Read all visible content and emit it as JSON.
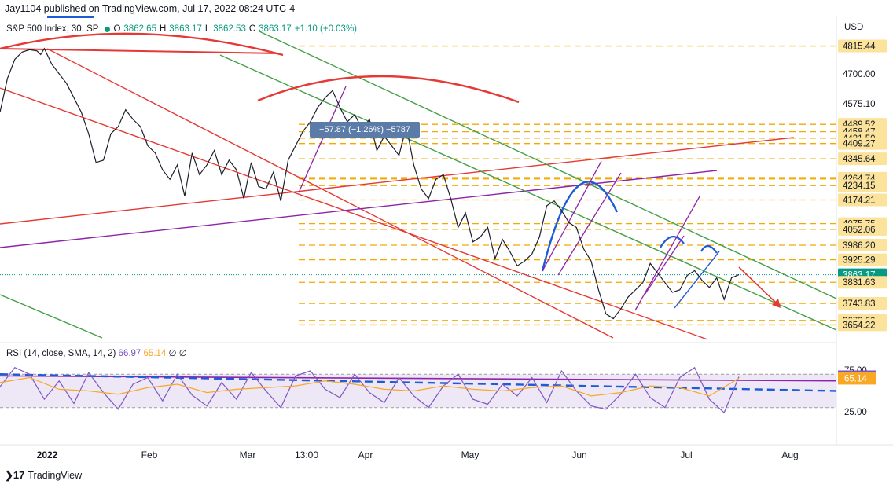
{
  "header": {
    "publisher_line": "Jay1104 published on TradingView.com, Jul 17, 2022 08:24 UTC-4"
  },
  "legend": {
    "symbol": "S&P 500 Index, 30, SP",
    "open_label": "O",
    "open": "3862.65",
    "high_label": "H",
    "high": "3863.17",
    "low_label": "L",
    "low": "3862.53",
    "close_label": "C",
    "close": "3863.17",
    "change": "+1.10 (+0.03%)"
  },
  "currency": "USD",
  "measure_label": "−57.87 (−1.26%) −5787",
  "rsi_legend": {
    "label": "RSI (14, close, SMA, 14, 2)",
    "rsi_value": "66.97",
    "sma_value": "65.14",
    "extra": "∅ ∅"
  },
  "footer": {
    "brand": "TradingView",
    "brand_icon": "tradingview-logo-icon"
  },
  "colors": {
    "price_line": "#1c1f2b",
    "support_dash": "#f2a900",
    "red_line": "#e53935",
    "green_line": "#43a047",
    "purple_line": "#8e24aa",
    "blue_line": "#1e5bd6",
    "rsi_line": "#7e57c2",
    "rsi_sma": "#f9a825",
    "rsi_band": "#ede7f6",
    "last_price_bg": "#089981"
  },
  "chart_data": [
    {
      "type": "line",
      "title": "S&P 500 Index, 30, SP",
      "x_labels": [
        "2022",
        "Feb",
        "Mar",
        "13:00",
        "Apr",
        "May",
        "Jun",
        "Jul",
        "Aug"
      ],
      "y_ticks": [
        4700.0
      ],
      "price_levels": [
        {
          "label": "4815.44",
          "value": 4815.44,
          "style": "dash"
        },
        {
          "label": "4575.10",
          "value": 4575.1,
          "style": "axis"
        },
        {
          "label": "4489.52",
          "value": 4489.52,
          "style": "dash"
        },
        {
          "label": "4458.47",
          "value": 4458.47,
          "style": "dash"
        },
        {
          "label": "4431.50",
          "value": 4431.5,
          "style": "dash"
        },
        {
          "label": "4409.27",
          "value": 4409.27,
          "style": "dash"
        },
        {
          "label": "4345.64",
          "value": 4345.64,
          "style": "dash"
        },
        {
          "label": "4264.74",
          "value": 4264.74,
          "style": "dash"
        },
        {
          "label": "4234.15",
          "value": 4234.15,
          "style": "dash"
        },
        {
          "label": "4174.21",
          "value": 4174.21,
          "style": "dash"
        },
        {
          "label": "4075.75",
          "value": 4075.75,
          "style": "dash"
        },
        {
          "label": "4052.06",
          "value": 4052.06,
          "style": "dash"
        },
        {
          "label": "3986.20",
          "value": 3986.2,
          "style": "dash"
        },
        {
          "label": "3925.29",
          "value": 3925.29,
          "style": "dash"
        },
        {
          "label": "3863.17",
          "value": 3863.17,
          "style": "last"
        },
        {
          "label": "3831.63",
          "value": 3831.63,
          "style": "dash"
        },
        {
          "label": "3743.83",
          "value": 3743.83,
          "style": "dash"
        },
        {
          "label": "3672.60",
          "value": 3672.6,
          "style": "dash"
        },
        {
          "label": "3654.22",
          "value": 3654.22,
          "style": "dash"
        }
      ],
      "series": [
        {
          "name": "S&P 500 Index",
          "x": [
            0,
            0.01,
            0.02,
            0.03,
            0.04,
            0.05,
            0.055,
            0.06,
            0.07,
            0.08,
            0.09,
            0.1,
            0.11,
            0.12,
            0.13,
            0.14,
            0.15,
            0.16,
            0.17,
            0.18,
            0.19,
            0.2,
            0.21,
            0.22,
            0.23,
            0.24,
            0.25,
            0.26,
            0.27,
            0.28,
            0.29,
            0.3,
            0.31,
            0.32,
            0.33,
            0.34,
            0.35,
            0.36,
            0.37,
            0.38,
            0.39,
            0.4,
            0.41,
            0.42,
            0.43,
            0.44,
            0.45,
            0.46,
            0.47,
            0.48,
            0.49,
            0.5,
            0.51,
            0.52,
            0.53,
            0.54,
            0.55,
            0.56,
            0.57,
            0.58,
            0.59,
            0.6,
            0.61,
            0.62,
            0.63,
            0.64,
            0.65,
            0.66,
            0.67,
            0.68,
            0.69,
            0.7,
            0.71,
            0.72,
            0.73,
            0.74,
            0.75,
            0.76,
            0.77,
            0.78,
            0.79,
            0.8,
            0.81,
            0.82,
            0.83,
            0.84,
            0.85,
            0.86,
            0.87,
            0.88,
            0.89,
            0.9,
            0.91,
            0.92,
            0.93,
            0.94,
            0.95,
            0.96,
            0.97,
            0.98,
            0.99,
            1.0
          ],
          "values": [
            4540,
            4680,
            4760,
            4790,
            4800,
            4795,
            4780,
            4805,
            4740,
            4700,
            4660,
            4600,
            4540,
            4450,
            4330,
            4340,
            4450,
            4480,
            4550,
            4510,
            4480,
            4400,
            4370,
            4300,
            4260,
            4320,
            4190,
            4370,
            4280,
            4320,
            4380,
            4280,
            4340,
            4300,
            4180,
            4330,
            4230,
            4220,
            4290,
            4170,
            4340,
            4400,
            4460,
            4500,
            4560,
            4600,
            4630,
            4560,
            4500,
            4530,
            4470,
            4510,
            4380,
            4440,
            4400,
            4360,
            4480,
            4320,
            4220,
            4180,
            4260,
            4280,
            4180,
            4060,
            4120,
            4000,
            4020,
            4060,
            3930,
            4010,
            3960,
            3900,
            3920,
            3950,
            4020,
            4150,
            4170,
            4130,
            4080,
            4060,
            3970,
            3920,
            3800,
            3700,
            3680,
            3720,
            3770,
            3800,
            3830,
            3910,
            3870,
            3830,
            3790,
            3800,
            3860,
            3880,
            3840,
            3810,
            3850,
            3760,
            3850,
            3863.17
          ]
        }
      ]
    },
    {
      "type": "line",
      "title": "RSI (14, close, SMA, 14, 2)",
      "y_ticks": [
        75.0,
        25.0
      ],
      "band": [
        30,
        70
      ],
      "last_values": {
        "rsi": 66.97,
        "sma": 65.14
      },
      "series": [
        {
          "name": "RSI",
          "x": [
            0,
            0.02,
            0.04,
            0.06,
            0.08,
            0.1,
            0.12,
            0.14,
            0.16,
            0.18,
            0.2,
            0.22,
            0.24,
            0.26,
            0.28,
            0.3,
            0.32,
            0.34,
            0.36,
            0.38,
            0.4,
            0.42,
            0.44,
            0.46,
            0.48,
            0.5,
            0.52,
            0.54,
            0.56,
            0.58,
            0.6,
            0.62,
            0.64,
            0.66,
            0.68,
            0.7,
            0.72,
            0.74,
            0.76,
            0.78,
            0.8,
            0.82,
            0.84,
            0.86,
            0.88,
            0.9,
            0.92,
            0.94,
            0.96,
            0.98,
            1.0
          ],
          "values": [
            55,
            78,
            70,
            40,
            62,
            35,
            72,
            48,
            28,
            58,
            66,
            38,
            70,
            45,
            32,
            60,
            40,
            72,
            50,
            30,
            68,
            74,
            52,
            42,
            70,
            48,
            36,
            66,
            44,
            30,
            56,
            70,
            40,
            34,
            58,
            44,
            66,
            36,
            74,
            50,
            32,
            28,
            46,
            70,
            42,
            30,
            66,
            78,
            40,
            24,
            66.97
          ]
        },
        {
          "name": "SMA",
          "x": [
            0,
            0.04,
            0.08,
            0.12,
            0.16,
            0.2,
            0.24,
            0.28,
            0.32,
            0.36,
            0.4,
            0.44,
            0.48,
            0.52,
            0.56,
            0.6,
            0.64,
            0.68,
            0.72,
            0.76,
            0.8,
            0.84,
            0.88,
            0.92,
            0.96,
            1.0
          ],
          "values": [
            60,
            66,
            52,
            50,
            46,
            54,
            58,
            48,
            52,
            54,
            56,
            62,
            58,
            52,
            50,
            56,
            52,
            50,
            54,
            56,
            44,
            48,
            56,
            54,
            44,
            65.14
          ]
        }
      ]
    }
  ]
}
